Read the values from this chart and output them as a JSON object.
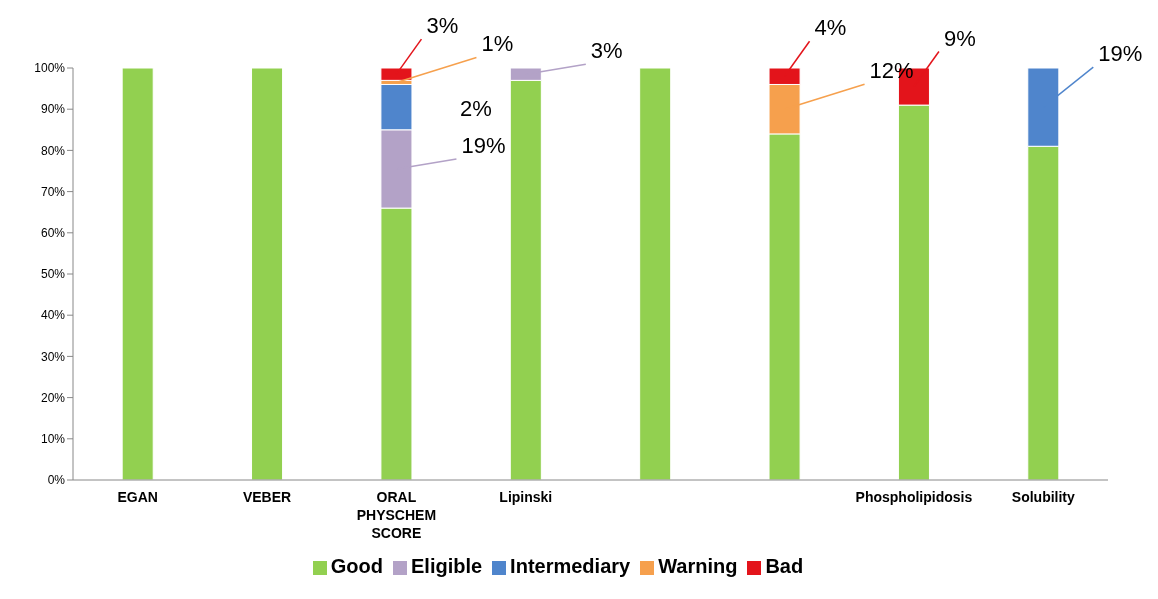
{
  "chart_data": {
    "type": "bar",
    "stacked": true,
    "categories": [
      "EGAN",
      "VEBER",
      "ORAL PHYSCHEM SCORE",
      "Lipinski",
      null,
      null,
      "Phospholipidosis",
      "Solubility"
    ],
    "series": [
      {
        "name": "Good",
        "color": "#92d050",
        "values": [
          100,
          100,
          66,
          97,
          100,
          84,
          91,
          81
        ]
      },
      {
        "name": "Eligible",
        "color": "#b3a2c7",
        "values": [
          0,
          0,
          19,
          3,
          0,
          0,
          0,
          0
        ],
        "value_labels": [
          null,
          null,
          "19%",
          "3%",
          null,
          null,
          null,
          null
        ]
      },
      {
        "name": "Intermediary",
        "color": "#4f85cc",
        "values": [
          0,
          0,
          11,
          0,
          0,
          0,
          0,
          19
        ],
        "value_labels": [
          null,
          null,
          null,
          null,
          null,
          null,
          null,
          "19%"
        ]
      },
      {
        "name": "Warning",
        "color": "#f6a04d",
        "values": [
          0,
          0,
          1,
          0,
          0,
          12,
          0,
          0
        ],
        "value_labels": [
          null,
          null,
          "1%",
          null,
          null,
          "12%",
          null,
          null
        ]
      },
      {
        "name": "Bad",
        "color": "#e3141b",
        "values": [
          0,
          0,
          3,
          0,
          0,
          4,
          9,
          0
        ],
        "value_labels": [
          null,
          null,
          "3%",
          null,
          null,
          "4%",
          "9%",
          null
        ]
      }
    ],
    "ylim": [
      0,
      100
    ],
    "yticks": [
      {
        "value": 0,
        "label": "0%"
      },
      {
        "value": 10,
        "label": "10%"
      },
      {
        "value": 20,
        "label": "20%"
      },
      {
        "value": 30,
        "label": "30%"
      },
      {
        "value": 40,
        "label": "40%"
      },
      {
        "value": 50,
        "label": "50%"
      },
      {
        "value": 60,
        "label": "60%"
      },
      {
        "value": 70,
        "label": "70%"
      },
      {
        "value": 80,
        "label": "80%"
      },
      {
        "value": 90,
        "label": "90%"
      },
      {
        "value": 100,
        "label": "100%"
      }
    ],
    "annotations": [
      "2%"
    ],
    "grid": false,
    "legend": "bottom"
  }
}
